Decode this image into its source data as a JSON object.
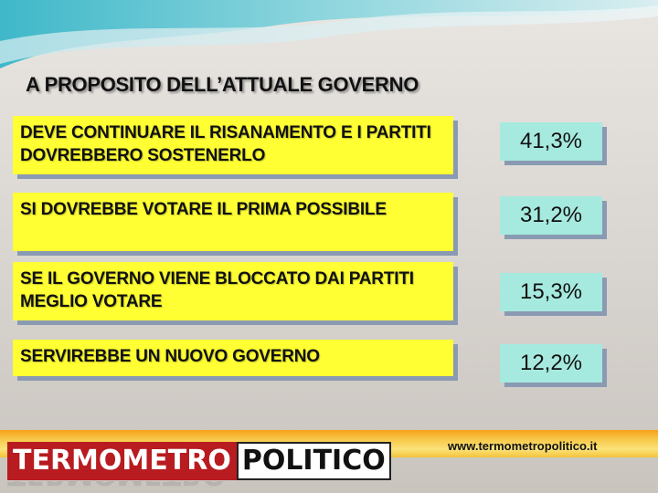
{
  "title": "A PROPOSITO DELL’ATTUALE GOVERNO",
  "rows": [
    {
      "answer": "DEVE CONTINUARE IL RISANAMENTO E I PARTITI DOVREBBERO SOSTENERLO",
      "value": "41,3%"
    },
    {
      "answer": "SI DOVREBBE VOTARE IL PRIMA POSSIBILE",
      "value": "31,2%"
    },
    {
      "answer": "SE IL GOVERNO VIENE BLOCCATO DAI PARTITI MEGLIO VOTARE",
      "value": "15,3%"
    },
    {
      "answer": "SERVIREBBE UN NUOVO GOVERNO",
      "value": "12,2%"
    }
  ],
  "footer": {
    "url": "www.termometropolitico.it",
    "logo_left": "TERMOMETRO",
    "logo_right": "POLITICO"
  },
  "colors": {
    "answer_bg": "#ffff33",
    "value_bg": "#a6eadf",
    "logo_red": "#b81c20",
    "band_orange": "#f7a21a"
  }
}
